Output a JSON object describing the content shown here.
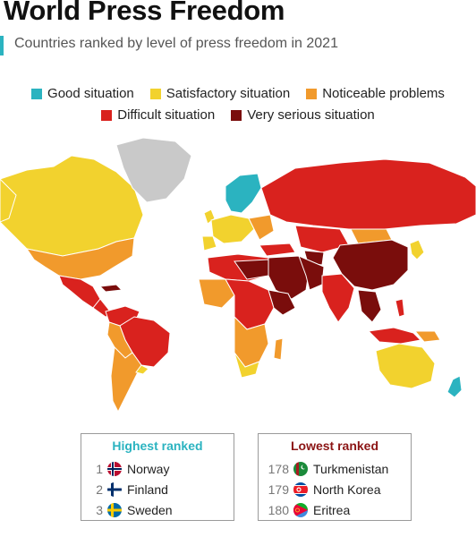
{
  "header": {
    "title": "World Press Freedom",
    "subtitle": "Countries ranked by level of press freedom in 2021",
    "accent_color": "#2bb3c0"
  },
  "legend": [
    {
      "label": "Good situation",
      "color": "#2bb3c0"
    },
    {
      "label": "Satisfactory situation",
      "color": "#f2d22e"
    },
    {
      "label": "Noticeable problems",
      "color": "#f19a2c"
    },
    {
      "label": "Difficult situation",
      "color": "#d9221e"
    },
    {
      "label": "Very serious situation",
      "color": "#7a0d0c"
    }
  ],
  "highest": {
    "heading": "Highest ranked",
    "heading_color": "#2bb3c0",
    "items": [
      {
        "rank": "1",
        "country": "Norway",
        "flag": "norway-flag-icon"
      },
      {
        "rank": "2",
        "country": "Finland",
        "flag": "finland-flag-icon"
      },
      {
        "rank": "3",
        "country": "Sweden",
        "flag": "sweden-flag-icon"
      }
    ]
  },
  "lowest": {
    "heading": "Lowest ranked",
    "heading_color": "#8b1414",
    "items": [
      {
        "rank": "178",
        "country": "Turkmenistan",
        "flag": "turkmenistan-flag-icon"
      },
      {
        "rank": "179",
        "country": "North Korea",
        "flag": "north-korea-flag-icon"
      },
      {
        "rank": "180",
        "country": "Eritrea",
        "flag": "eritrea-flag-icon"
      }
    ]
  },
  "map": {
    "no_data_color": "#c9c9c9"
  }
}
